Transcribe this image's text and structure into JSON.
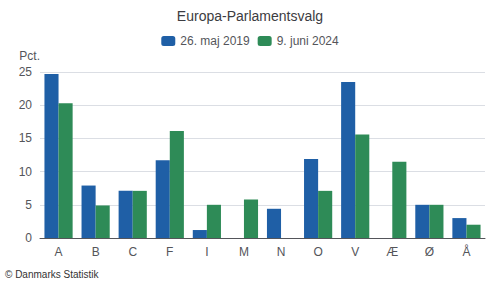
{
  "chart_data": {
    "type": "bar",
    "title": "Europa-Parlamentsvalg",
    "categories": [
      "A",
      "B",
      "C",
      "F",
      "I",
      "M",
      "N",
      "O",
      "V",
      "Æ",
      "Ø",
      "Å"
    ],
    "series": [
      {
        "name": "26. maj 2019",
        "color": "#1f5fa6",
        "values": [
          24.7,
          7.9,
          7.1,
          11.7,
          1.2,
          0,
          4.4,
          11.9,
          23.5,
          0,
          5.0,
          3.0
        ]
      },
      {
        "name": "9. juni 2024",
        "color": "#2e8b57",
        "values": [
          20.3,
          4.9,
          7.1,
          16.1,
          5.0,
          5.8,
          0,
          7.1,
          15.6,
          11.5,
          5.0,
          2.0
        ]
      }
    ],
    "ylabel": "Pct.",
    "ylim": [
      0,
      25
    ],
    "yticks": [
      0,
      5,
      10,
      15,
      20,
      25
    ],
    "grid": true,
    "legend": "top",
    "annotations": [
      "© Danmarks Statistik"
    ]
  }
}
